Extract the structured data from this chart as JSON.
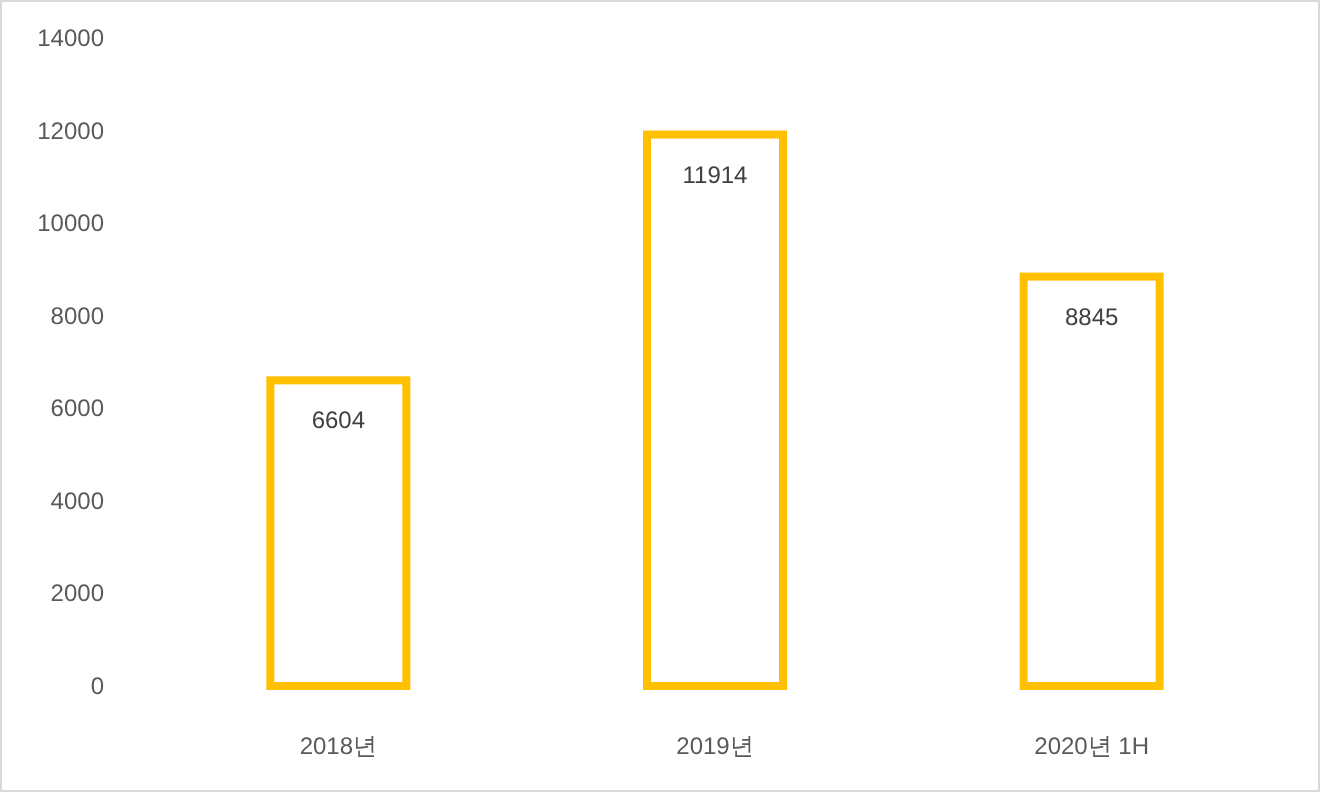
{
  "chart_data": {
    "type": "bar",
    "categories": [
      "2018년",
      "2019년",
      "2020년 1H"
    ],
    "values": [
      6604,
      11914,
      8845
    ],
    "color": "#ffc000",
    "ylim": [
      0,
      14000
    ],
    "yticks": [
      0,
      2000,
      4000,
      6000,
      8000,
      10000,
      12000,
      14000
    ],
    "data_labels": true
  }
}
